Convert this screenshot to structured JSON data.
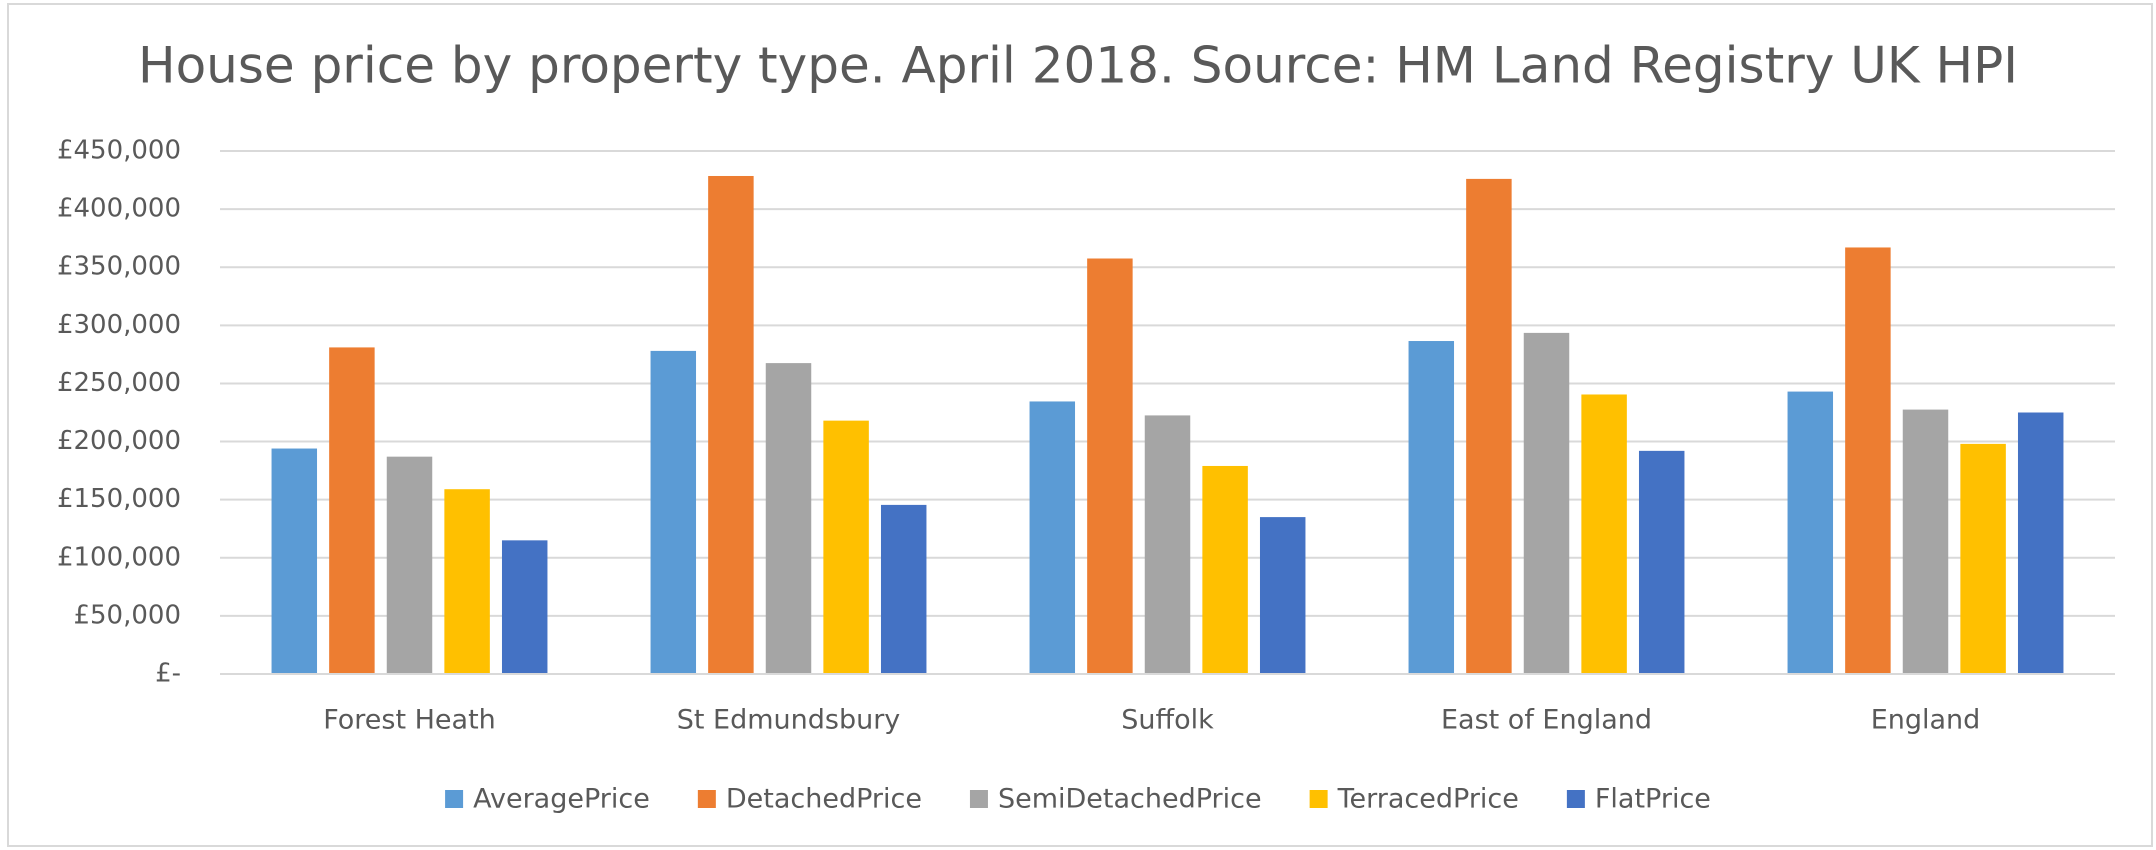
{
  "chart_data": {
    "type": "bar",
    "title": "House price by property type. April 2018. Source: HM Land Registry UK HPI",
    "categories": [
      "Forest Heath",
      "St Edmundsbury",
      "Suffolk",
      "East of England",
      "England"
    ],
    "series": [
      {
        "name": "AveragePrice",
        "color": "#5b9bd5",
        "values": [
          194000,
          278000,
          234500,
          286500,
          243000
        ]
      },
      {
        "name": "DetachedPrice",
        "color": "#ed7d31",
        "values": [
          281000,
          428500,
          357500,
          426000,
          367000
        ]
      },
      {
        "name": "SemiDetachedPrice",
        "color": "#a5a5a5",
        "values": [
          187000,
          267500,
          222500,
          293500,
          227500
        ]
      },
      {
        "name": "TerracedPrice",
        "color": "#ffc000",
        "values": [
          159000,
          218000,
          179000,
          240500,
          198000
        ]
      },
      {
        "name": "FlatPrice",
        "color": "#4472c4",
        "values": [
          115000,
          145500,
          135000,
          192000,
          225000
        ]
      }
    ],
    "ylim": [
      0,
      450000
    ],
    "yticks": [
      {
        "value": 0,
        "label": "£-"
      },
      {
        "value": 50000,
        "label": "£50,000"
      },
      {
        "value": 100000,
        "label": "£100,000"
      },
      {
        "value": 150000,
        "label": "£150,000"
      },
      {
        "value": 200000,
        "label": "£200,000"
      },
      {
        "value": 250000,
        "label": "£250,000"
      },
      {
        "value": 300000,
        "label": "£300,000"
      },
      {
        "value": 350000,
        "label": "£350,000"
      },
      {
        "value": 400000,
        "label": "£400,000"
      },
      {
        "value": 450000,
        "label": "£450,000"
      }
    ],
    "grid": true,
    "legend": "bottom"
  }
}
